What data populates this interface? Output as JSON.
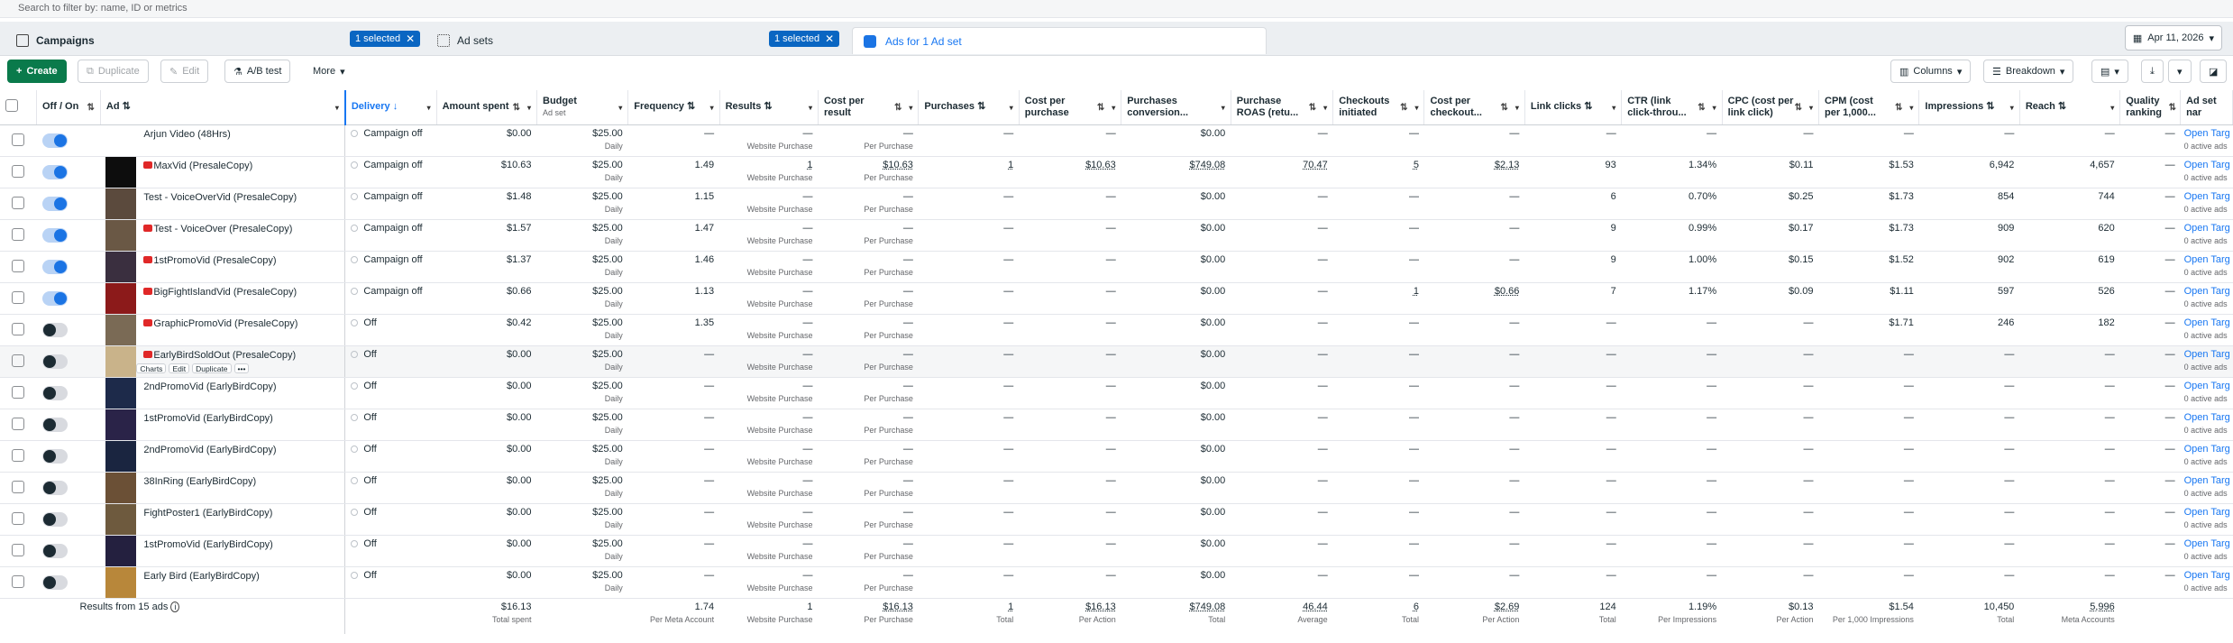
{
  "search": {
    "placeholder": "Search to filter by: name, ID or metrics"
  },
  "levels": {
    "campaigns": "Campaigns",
    "campaigns_selected": "1 selected",
    "adsets": "Ad sets",
    "adsets_selected": "1 selected",
    "ads": "Ads for 1 Ad set"
  },
  "date": "Apr 11, 2026",
  "toolbar": {
    "create": "Create",
    "duplicate": "Duplicate",
    "edit": "Edit",
    "ab_test": "A/B test",
    "more": "More",
    "columns": "Columns",
    "breakdown": "Breakdown"
  },
  "columns": {
    "offon": "Off / On",
    "ad": "Ad",
    "delivery": "Delivery",
    "amount_spent": "Amount spent",
    "budget": "Budget",
    "budget_sub": "Ad set",
    "frequency": "Frequency",
    "results": "Results",
    "cost_per_result": "Cost per result",
    "purchases": "Purchases",
    "cost_per_purchase": "Cost per purchase",
    "purchases_conversion": "Purchases conversion...",
    "purchase_roas": "Purchase ROAS (retu...",
    "checkouts_initiated": "Checkouts initiated",
    "cost_per_checkout": "Cost per checkout...",
    "link_clicks": "Link clicks",
    "ctr": "CTR (link click-throu...",
    "cpc": "CPC (cost per link click)",
    "cpm": "CPM (cost per 1,000...",
    "impressions": "Impressions",
    "reach": "Reach",
    "quality": "Quality ranking",
    "ad_set_name": "Ad set nar"
  },
  "row_actions": {
    "charts": "Charts",
    "edit": "Edit",
    "duplicate": "Duplicate"
  },
  "rows": [
    {
      "toggle": "on",
      "name": "Arjun Video (48Hrs)",
      "flag": false,
      "delivery": "Campaign off",
      "spent": "$0.00",
      "budget": "$25.00",
      "budget_sub": "Daily",
      "freq": "—",
      "results": "—",
      "results_sub": "Website Purchase",
      "cpr": "—",
      "cpr_sub": "Per Purchase",
      "purchases": "—",
      "cpp": "—",
      "pconv": "$0.00",
      "roas": "—",
      "checkouts": "—",
      "cpc_checkout": "—",
      "link_clicks": "—",
      "ctr": "—",
      "cpc": "—",
      "cpm": "—",
      "impr": "—",
      "reach": "—",
      "quality": "—",
      "adset": "Open Targ",
      "adset_sub": "0 active ads",
      "thumb": "#ffffff"
    },
    {
      "toggle": "on",
      "name": "MaxVid (PresaleCopy)",
      "flag": true,
      "delivery": "Campaign off",
      "spent": "$10.63",
      "budget": "$25.00",
      "budget_sub": "Daily",
      "freq": "1.49",
      "results": "1",
      "results_sub": "Website Purchase",
      "cpr": "$10.63",
      "cpr_sub": "Per Purchase",
      "purchases": "1",
      "cpp": "$10.63",
      "pconv": "$749.08",
      "roas": "70.47",
      "checkouts": "5",
      "cpc_checkout": "$2.13",
      "link_clicks": "93",
      "ctr": "1.34%",
      "cpc": "$0.11",
      "cpm": "$1.53",
      "impr": "6,942",
      "reach": "4,657",
      "quality": "—",
      "adset": "Open Targ",
      "adset_sub": "0 active ads",
      "thumb": "#0d0d0d"
    },
    {
      "toggle": "on",
      "name": "Test - VoiceOverVid (PresaleCopy)",
      "flag": false,
      "delivery": "Campaign off",
      "spent": "$1.48",
      "budget": "$25.00",
      "budget_sub": "Daily",
      "freq": "1.15",
      "results": "—",
      "results_sub": "Website Purchase",
      "cpr": "—",
      "cpr_sub": "Per Purchase",
      "purchases": "—",
      "cpp": "—",
      "pconv": "$0.00",
      "roas": "—",
      "checkouts": "—",
      "cpc_checkout": "—",
      "link_clicks": "6",
      "ctr": "0.70%",
      "cpc": "$0.25",
      "cpm": "$1.73",
      "impr": "854",
      "reach": "744",
      "quality": "—",
      "adset": "Open Targ",
      "adset_sub": "0 active ads",
      "thumb": "#5b4a3d"
    },
    {
      "toggle": "on",
      "name": "Test - VoiceOver (PresaleCopy)",
      "flag": true,
      "delivery": "Campaign off",
      "spent": "$1.57",
      "budget": "$25.00",
      "budget_sub": "Daily",
      "freq": "1.47",
      "results": "—",
      "results_sub": "Website Purchase",
      "cpr": "—",
      "cpr_sub": "Per Purchase",
      "purchases": "—",
      "cpp": "—",
      "pconv": "$0.00",
      "roas": "—",
      "checkouts": "—",
      "cpc_checkout": "—",
      "link_clicks": "9",
      "ctr": "0.99%",
      "cpc": "$0.17",
      "cpm": "$1.73",
      "impr": "909",
      "reach": "620",
      "quality": "—",
      "adset": "Open Targ",
      "adset_sub": "0 active ads",
      "thumb": "#6a5845"
    },
    {
      "toggle": "on",
      "name": "1stPromoVid (PresaleCopy)",
      "flag": true,
      "delivery": "Campaign off",
      "spent": "$1.37",
      "budget": "$25.00",
      "budget_sub": "Daily",
      "freq": "1.46",
      "results": "—",
      "results_sub": "Website Purchase",
      "cpr": "—",
      "cpr_sub": "Per Purchase",
      "purchases": "—",
      "cpp": "—",
      "pconv": "$0.00",
      "roas": "—",
      "checkouts": "—",
      "cpc_checkout": "—",
      "link_clicks": "9",
      "ctr": "1.00%",
      "cpc": "$0.15",
      "cpm": "$1.52",
      "impr": "902",
      "reach": "619",
      "quality": "—",
      "adset": "Open Targ",
      "adset_sub": "0 active ads",
      "thumb": "#3a2f3f"
    },
    {
      "toggle": "on",
      "name": "BigFightIslandVid (PresaleCopy)",
      "flag": true,
      "delivery": "Campaign off",
      "spent": "$0.66",
      "budget": "$25.00",
      "budget_sub": "Daily",
      "freq": "1.13",
      "results": "—",
      "results_sub": "Website Purchase",
      "cpr": "—",
      "cpr_sub": "Per Purchase",
      "purchases": "—",
      "cpp": "—",
      "pconv": "$0.00",
      "roas": "—",
      "checkouts": "1",
      "cpc_checkout": "$0.66",
      "link_clicks": "7",
      "ctr": "1.17%",
      "cpc": "$0.09",
      "cpm": "$1.11",
      "impr": "597",
      "reach": "526",
      "quality": "—",
      "adset": "Open Targ",
      "adset_sub": "0 active ads",
      "thumb": "#8c1a1a"
    },
    {
      "toggle": "off",
      "name": "GraphicPromoVid (PresaleCopy)",
      "flag": true,
      "delivery": "Off",
      "spent": "$0.42",
      "budget": "$25.00",
      "budget_sub": "Daily",
      "freq": "1.35",
      "results": "—",
      "results_sub": "Website Purchase",
      "cpr": "—",
      "cpr_sub": "Per Purchase",
      "purchases": "—",
      "cpp": "—",
      "pconv": "$0.00",
      "roas": "—",
      "checkouts": "—",
      "cpc_checkout": "—",
      "link_clicks": "—",
      "ctr": "—",
      "cpc": "—",
      "cpm": "$1.71",
      "impr": "246",
      "reach": "182",
      "quality": "—",
      "adset": "Open Targ",
      "adset_sub": "0 active ads",
      "thumb": "#7a6a55"
    },
    {
      "toggle": "off",
      "name": "EarlyBirdSoldOut (PresaleCopy)",
      "flag": true,
      "delivery": "Off",
      "spent": "$0.00",
      "budget": "$25.00",
      "budget_sub": "Daily",
      "freq": "—",
      "results": "—",
      "results_sub": "Website Purchase",
      "cpr": "—",
      "cpr_sub": "Per Purchase",
      "purchases": "—",
      "cpp": "—",
      "pconv": "$0.00",
      "roas": "—",
      "checkouts": "—",
      "cpc_checkout": "—",
      "link_clicks": "—",
      "ctr": "—",
      "cpc": "—",
      "cpm": "—",
      "impr": "—",
      "reach": "—",
      "quality": "—",
      "adset": "Open Targ",
      "adset_sub": "0 active ads",
      "thumb": "#c9b38a",
      "hover": true
    },
    {
      "toggle": "off",
      "name": "2ndPromoVid (EarlyBirdCopy)",
      "flag": false,
      "delivery": "Off",
      "spent": "$0.00",
      "budget": "$25.00",
      "budget_sub": "Daily",
      "freq": "—",
      "results": "—",
      "results_sub": "Website Purchase",
      "cpr": "—",
      "cpr_sub": "Per Purchase",
      "purchases": "—",
      "cpp": "—",
      "pconv": "$0.00",
      "roas": "—",
      "checkouts": "—",
      "cpc_checkout": "—",
      "link_clicks": "—",
      "ctr": "—",
      "cpc": "—",
      "cpm": "—",
      "impr": "—",
      "reach": "—",
      "quality": "—",
      "adset": "Open Targ",
      "adset_sub": "0 active ads",
      "thumb": "#1d2a4a"
    },
    {
      "toggle": "off",
      "name": "1stPromoVid (EarlyBirdCopy)",
      "flag": false,
      "delivery": "Off",
      "spent": "$0.00",
      "budget": "$25.00",
      "budget_sub": "Daily",
      "freq": "—",
      "results": "—",
      "results_sub": "Website Purchase",
      "cpr": "—",
      "cpr_sub": "Per Purchase",
      "purchases": "—",
      "cpp": "—",
      "pconv": "$0.00",
      "roas": "—",
      "checkouts": "—",
      "cpc_checkout": "—",
      "link_clicks": "—",
      "ctr": "—",
      "cpc": "—",
      "cpm": "—",
      "impr": "—",
      "reach": "—",
      "quality": "—",
      "adset": "Open Targ",
      "adset_sub": "0 active ads",
      "thumb": "#2a2348"
    },
    {
      "toggle": "off",
      "name": "2ndPromoVid (EarlyBirdCopy)",
      "flag": false,
      "delivery": "Off",
      "spent": "$0.00",
      "budget": "$25.00",
      "budget_sub": "Daily",
      "freq": "—",
      "results": "—",
      "results_sub": "Website Purchase",
      "cpr": "—",
      "cpr_sub": "Per Purchase",
      "purchases": "—",
      "cpp": "—",
      "pconv": "$0.00",
      "roas": "—",
      "checkouts": "—",
      "cpc_checkout": "—",
      "link_clicks": "—",
      "ctr": "—",
      "cpc": "—",
      "cpm": "—",
      "impr": "—",
      "reach": "—",
      "quality": "—",
      "adset": "Open Targ",
      "adset_sub": "0 active ads",
      "thumb": "#1a2540"
    },
    {
      "toggle": "off",
      "name": "38InRing (EarlyBirdCopy)",
      "flag": false,
      "delivery": "Off",
      "spent": "$0.00",
      "budget": "$25.00",
      "budget_sub": "Daily",
      "freq": "—",
      "results": "—",
      "results_sub": "Website Purchase",
      "cpr": "—",
      "cpr_sub": "Per Purchase",
      "purchases": "—",
      "cpp": "—",
      "pconv": "$0.00",
      "roas": "—",
      "checkouts": "—",
      "cpc_checkout": "—",
      "link_clicks": "—",
      "ctr": "—",
      "cpc": "—",
      "cpm": "—",
      "impr": "—",
      "reach": "—",
      "quality": "—",
      "adset": "Open Targ",
      "adset_sub": "0 active ads",
      "thumb": "#6b5036"
    },
    {
      "toggle": "off",
      "name": "FightPoster1 (EarlyBirdCopy)",
      "flag": false,
      "delivery": "Off",
      "spent": "$0.00",
      "budget": "$25.00",
      "budget_sub": "Daily",
      "freq": "—",
      "results": "—",
      "results_sub": "Website Purchase",
      "cpr": "—",
      "cpr_sub": "Per Purchase",
      "purchases": "—",
      "cpp": "—",
      "pconv": "$0.00",
      "roas": "—",
      "checkouts": "—",
      "cpc_checkout": "—",
      "link_clicks": "—",
      "ctr": "—",
      "cpc": "—",
      "cpm": "—",
      "impr": "—",
      "reach": "—",
      "quality": "—",
      "adset": "Open Targ",
      "adset_sub": "0 active ads",
      "thumb": "#6e5a3e"
    },
    {
      "toggle": "off",
      "name": "1stPromoVid (EarlyBirdCopy)",
      "flag": false,
      "delivery": "Off",
      "spent": "$0.00",
      "budget": "$25.00",
      "budget_sub": "Daily",
      "freq": "—",
      "results": "—",
      "results_sub": "Website Purchase",
      "cpr": "—",
      "cpr_sub": "Per Purchase",
      "purchases": "—",
      "cpp": "—",
      "pconv": "$0.00",
      "roas": "—",
      "checkouts": "—",
      "cpc_checkout": "—",
      "link_clicks": "—",
      "ctr": "—",
      "cpc": "—",
      "cpm": "—",
      "impr": "—",
      "reach": "—",
      "quality": "—",
      "adset": "Open Targ",
      "adset_sub": "0 active ads",
      "thumb": "#24203f"
    },
    {
      "toggle": "off",
      "name": "Early Bird (EarlyBirdCopy)",
      "flag": false,
      "delivery": "Off",
      "spent": "$0.00",
      "budget": "$25.00",
      "budget_sub": "Daily",
      "freq": "—",
      "results": "—",
      "results_sub": "Website Purchase",
      "cpr": "—",
      "cpr_sub": "Per Purchase",
      "purchases": "—",
      "cpp": "—",
      "pconv": "$0.00",
      "roas": "—",
      "checkouts": "—",
      "cpc_checkout": "—",
      "link_clicks": "—",
      "ctr": "—",
      "cpc": "—",
      "cpm": "—",
      "impr": "—",
      "reach": "—",
      "quality": "—",
      "adset": "Open Targ",
      "adset_sub": "0 active ads",
      "thumb": "#b8873a"
    }
  ],
  "totals": {
    "label": "Results from 15 ads",
    "spent": "$16.13",
    "spent_sub": "Total spent",
    "freq": "1.74",
    "freq_sub": "Per Meta Account",
    "results": "1",
    "results_sub": "Website Purchase",
    "cpr": "$16.13",
    "cpr_sub": "Per Purchase",
    "purchases": "1",
    "purchases_sub": "Total",
    "cpp": "$16.13",
    "cpp_sub": "Per Action",
    "pconv": "$749.08",
    "pconv_sub": "Total",
    "roas": "46.44",
    "roas_sub": "Average",
    "checkouts": "6",
    "checkouts_sub": "Total",
    "cpc_checkout": "$2.69",
    "cpc_checkout_sub": "Per Action",
    "link_clicks": "124",
    "link_clicks_sub": "Total",
    "ctr": "1.19%",
    "ctr_sub": "Per Impressions",
    "cpc": "$0.13",
    "cpc_sub": "Per Action",
    "cpm": "$1.54",
    "cpm_sub": "Per 1,000 Impressions",
    "impr": "10,450",
    "impr_sub": "Total",
    "reach": "5,996",
    "reach_sub": "Meta Accounts"
  },
  "colors": {
    "primary_button": "#0a7a4b",
    "link": "#1877f2",
    "toggle_on": "#1b74e4",
    "chip": "#0a66c2"
  }
}
